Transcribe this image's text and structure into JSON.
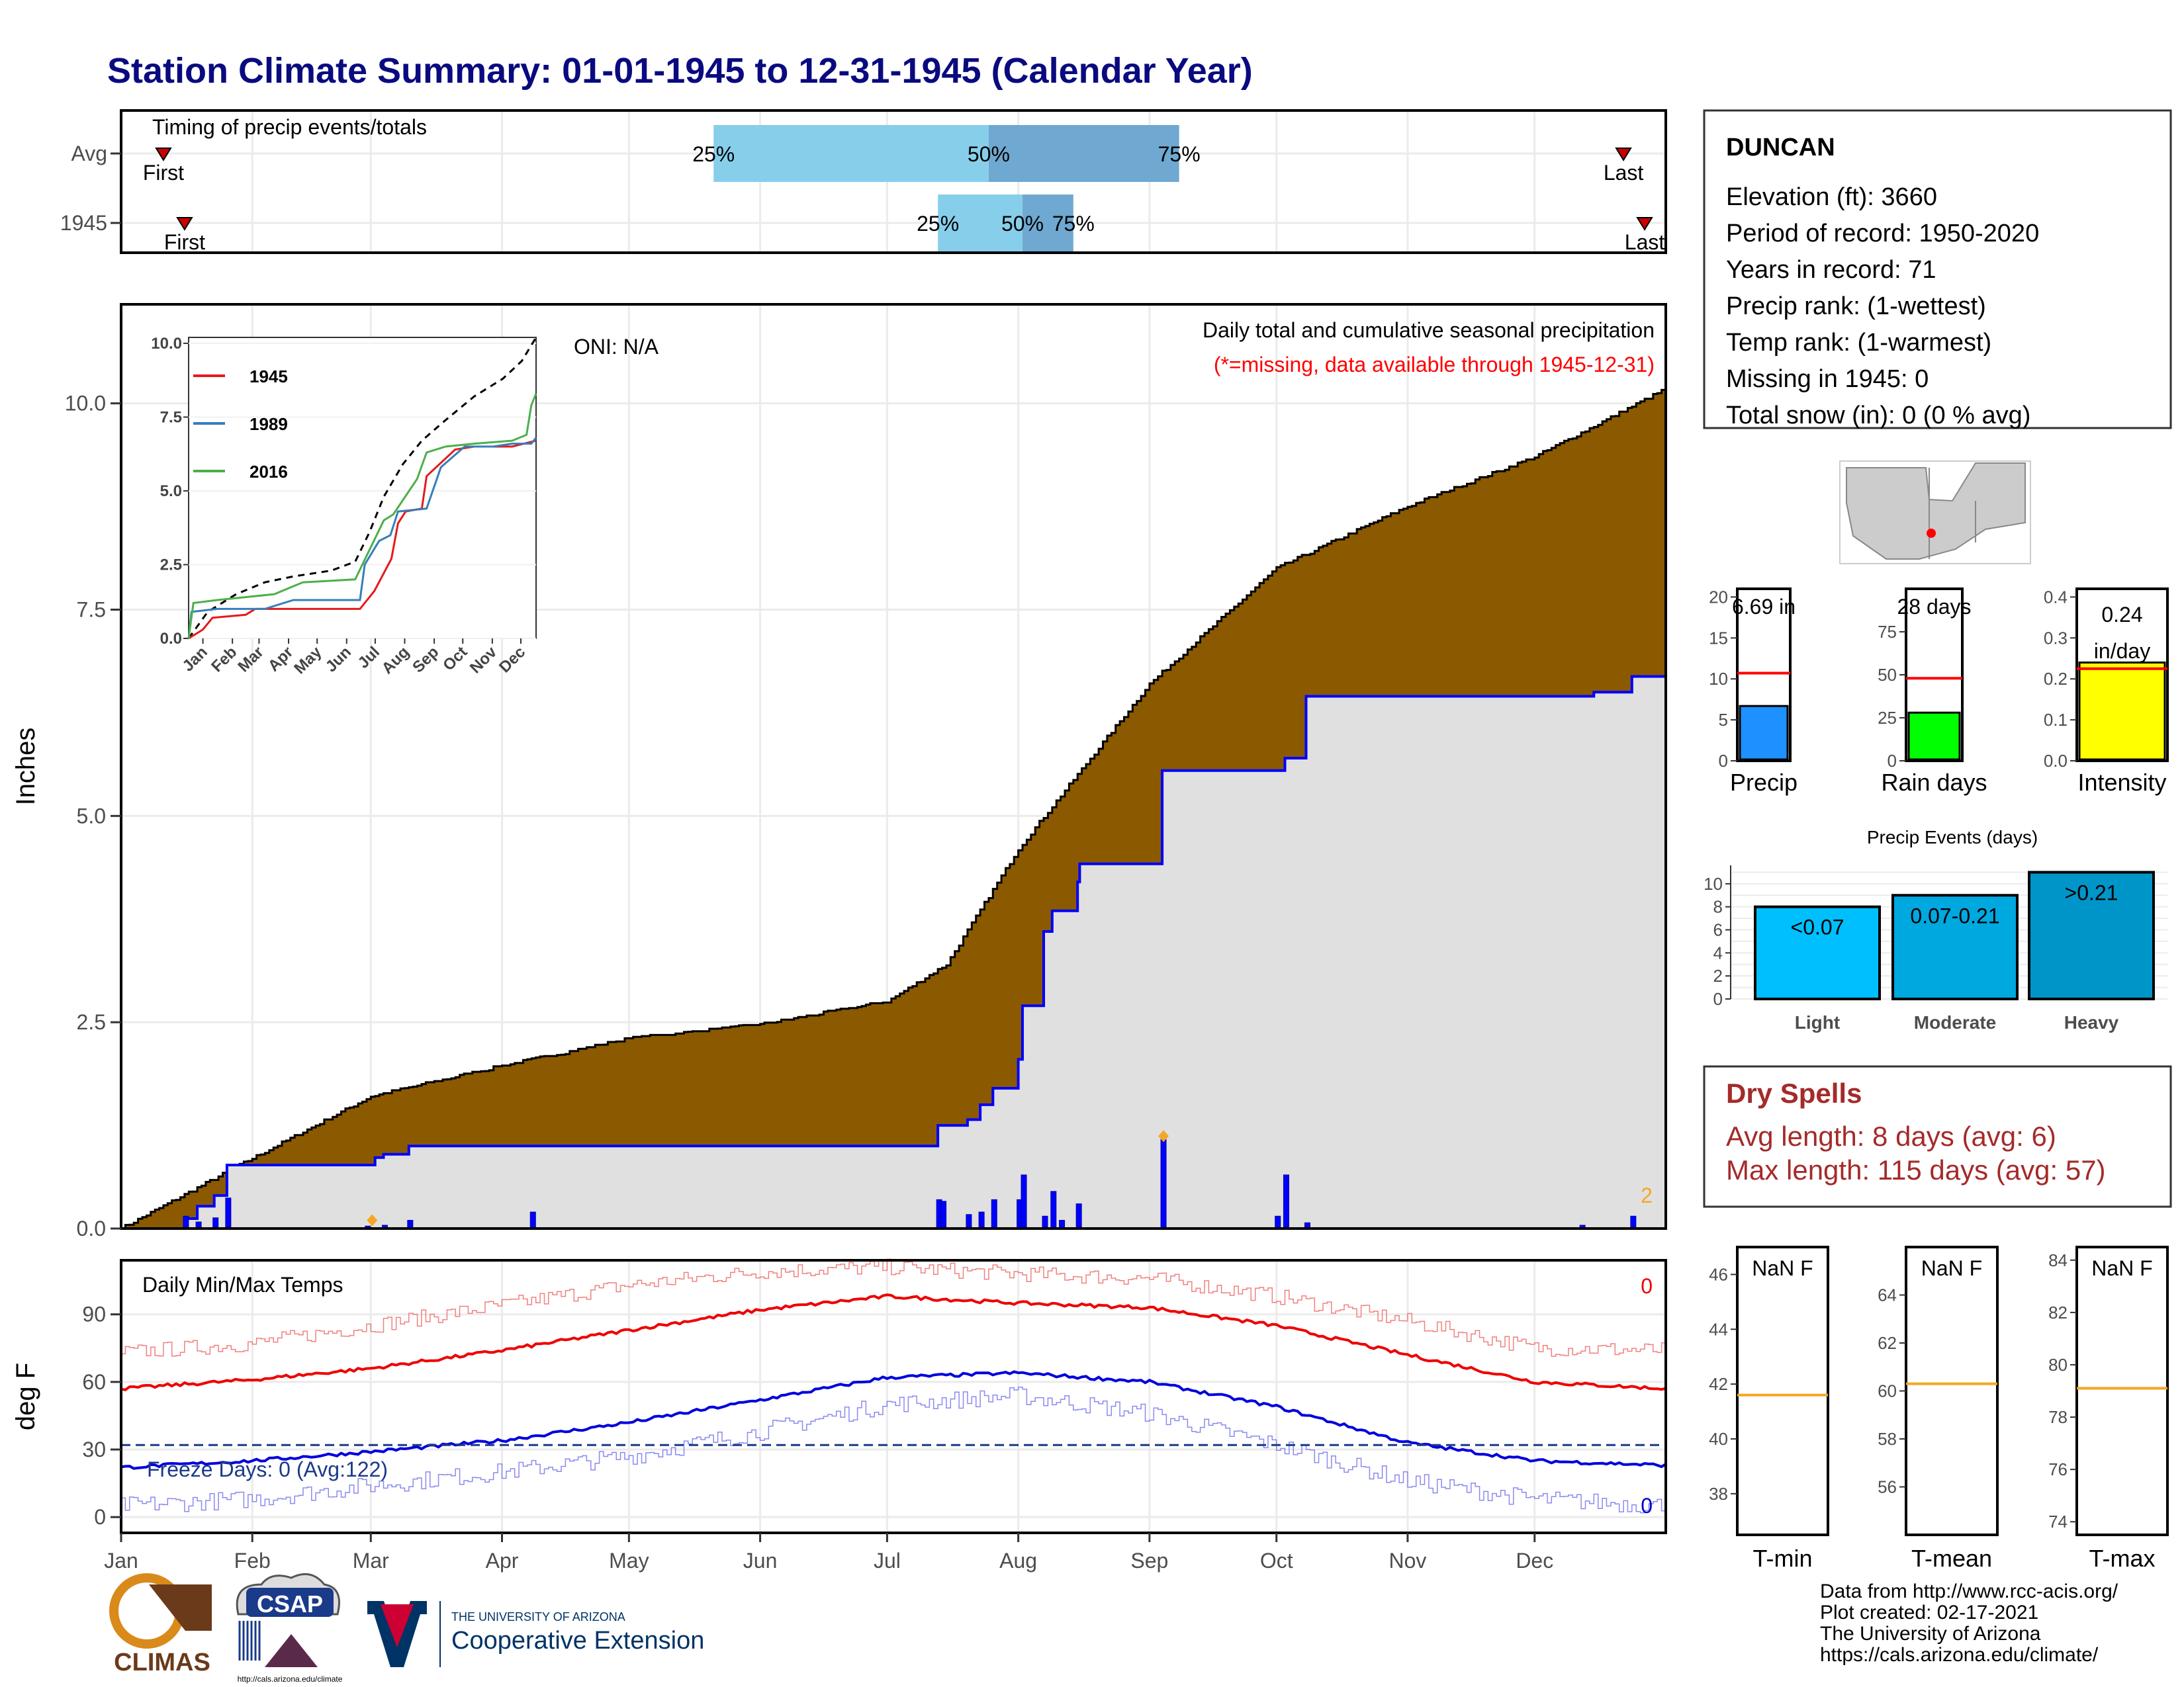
{
  "title": "Station Climate Summary: 01-01-1945 to 12-31-1945 (Calendar Year)",
  "months": [
    "Jan",
    "Feb",
    "Mar",
    "Apr",
    "May",
    "Jun",
    "Jul",
    "Aug",
    "Sep",
    "Oct",
    "Nov",
    "Dec"
  ],
  "timing": {
    "label": "Timing of precip events/totals",
    "rows": [
      "Avg",
      "1945"
    ],
    "first_label": "First",
    "last_label": "Last",
    "avg": {
      "first_day": 10,
      "p25_day": 140,
      "p50_day": 205,
      "p75_day": 250,
      "last_day": 355
    },
    "year": {
      "first_day": 15,
      "p25_day": 193,
      "p50_day": 213,
      "p75_day": 225,
      "last_day": 360
    },
    "pct_labels": [
      "25%",
      "50%",
      "75%"
    ],
    "colors": {
      "light": "#87ceeb",
      "dark": "#6fa8d0",
      "marker": "#cc0000"
    }
  },
  "station": {
    "name": "DUNCAN",
    "lines": [
      "Elevation (ft): 3660",
      "Period of record: 1950-2020",
      "Years in record: 71",
      "Precip rank:  (1-wettest)",
      "Temp rank:  (1-warmest)",
      "Missing in 1945: 0",
      "Total snow (in): 0 (0 % avg)"
    ]
  },
  "precip_panel": {
    "ylabel": "Inches",
    "yticks": [
      0.0,
      2.5,
      5.0,
      7.5,
      10.0
    ],
    "ytick_labels": [
      "0.0",
      "2.5",
      "5.0",
      "7.5",
      "10.0"
    ],
    "oni": "ONI: N/A",
    "annot1": "Daily total and cumulative seasonal precipitation",
    "annot2": "(*=missing, data available through 1945-12-31)",
    "count_label": "2",
    "colors": {
      "avg_fill": "#8b5a00",
      "obs_fill": "#e0e0e0",
      "obs_line": "#0000ff",
      "bar": "#0000ff",
      "missing": "#f5a623",
      "annot2": "#ff0000"
    }
  },
  "inset": {
    "yticks": [
      "0.0",
      "2.5",
      "5.0",
      "7.5",
      "10.0"
    ],
    "legend": [
      "1945",
      "1989",
      "2016"
    ],
    "colors": {
      "1945": "#e41a1c",
      "1989": "#377eb8",
      "2016": "#4daf4a",
      "avg": "#000000"
    }
  },
  "gauges": [
    {
      "name": "Precip",
      "label": "6.69 in",
      "value": 6.69,
      "avg": 10.7,
      "ymax": 21,
      "ticks": [
        "0",
        "5",
        "10",
        "15",
        "20"
      ],
      "tickvals": [
        0,
        5,
        10,
        15,
        20
      ],
      "color": "#1e90ff"
    },
    {
      "name": "Rain days",
      "label": "28 days",
      "value": 28,
      "avg": 48,
      "ymax": 100,
      "ticks": [
        "0",
        "25",
        "50",
        "75"
      ],
      "tickvals": [
        0,
        25,
        50,
        75
      ],
      "color": "#00ff00"
    },
    {
      "name": "Intensity",
      "label": "0.24 in/day",
      "label_lines": [
        "0.24",
        "in/day"
      ],
      "value": 0.24,
      "avg": 0.225,
      "ymax": 0.42,
      "ticks": [
        "0.0",
        "0.1",
        "0.2",
        "0.3",
        "0.4"
      ],
      "tickvals": [
        0,
        0.1,
        0.2,
        0.3,
        0.4
      ],
      "color": "#ffff00"
    }
  ],
  "events": {
    "title": "Precip Events (days)",
    "categories": [
      "Light",
      "Moderate",
      "Heavy"
    ],
    "values": [
      8,
      9,
      11
    ],
    "labels": [
      "<0.07",
      "0.07-0.21",
      ">0.21"
    ],
    "yticks": [
      "0",
      "2",
      "4",
      "6",
      "8",
      "10"
    ],
    "colors": [
      "#00bfff",
      "#00a8e0",
      "#0095c8"
    ]
  },
  "dry_spells": {
    "title": "Dry Spells",
    "avg_length": "Avg length: 8 days (avg: 6)",
    "max_length": "Max length: 115 days (avg: 57)"
  },
  "temp_panel": {
    "title": "Daily Min/Max Temps",
    "ylabel": "deg F",
    "yticks": [
      "0",
      "30",
      "60",
      "90"
    ],
    "freeze": "Freeze Days: 0 (Avg:122)",
    "count_hot": "0",
    "count_cold": "0"
  },
  "temp_gauges": [
    {
      "name": "T-min",
      "label": "NaN F",
      "avg": 41.6,
      "ymin": 36.5,
      "ymax": 47,
      "ticks": [
        "38",
        "40",
        "42",
        "44",
        "46"
      ],
      "tickvals": [
        38,
        40,
        42,
        44,
        46
      ]
    },
    {
      "name": "T-mean",
      "label": "NaN F",
      "avg": 60.3,
      "ymin": 54,
      "ymax": 66,
      "ticks": [
        "56",
        "58",
        "60",
        "62",
        "64"
      ],
      "tickvals": [
        56,
        58,
        60,
        62,
        64
      ]
    },
    {
      "name": "T-max",
      "label": "NaN F",
      "avg": 79.1,
      "ymin": 73.5,
      "ymax": 84.5,
      "ticks": [
        "74",
        "76",
        "78",
        "80",
        "82",
        "84"
      ],
      "tickvals": [
        74,
        76,
        78,
        80,
        82,
        84
      ]
    }
  ],
  "footer": {
    "lines": [
      "Data from http://www.rcc-acis.org/",
      "Plot created: 02-17-2021",
      "The University of Arizona",
      "https://cals.arizona.edu/climate/"
    ]
  },
  "logos": {
    "climas": "CLIMAS",
    "csap": "CSAP",
    "csap_url": "http://cals.arizona.edu/climate",
    "ua_small": "THE UNIVERSITY OF ARIZONA",
    "ua_big": "Cooperative Extension"
  },
  "chart_data": [
    {
      "type": "area",
      "title": "Daily total and cumulative seasonal precipitation",
      "ylabel": "Inches",
      "ylim": [
        0,
        11.2
      ],
      "x": [
        "Jan 1",
        "Feb 1",
        "Mar 1",
        "Apr 1",
        "May 1",
        "Jun 1",
        "Jul 1",
        "Jul 15",
        "Aug 1",
        "Sep 1",
        "Oct 1",
        "Nov 1",
        "Dec 1",
        "Dec 31"
      ],
      "series": [
        {
          "name": "avg",
          "values": [
            0.0,
            0.85,
            1.6,
            1.97,
            2.3,
            2.47,
            2.75,
            3.2,
            4.6,
            6.6,
            8.0,
            8.75,
            9.35,
            10.15
          ]
        },
        {
          "name": "1945",
          "values": [
            0.0,
            0.77,
            0.77,
            1.0,
            1.0,
            1.0,
            1.0,
            1.25,
            2.65,
            4.42,
            5.55,
            6.45,
            6.45,
            6.69
          ]
        }
      ]
    },
    {
      "type": "line",
      "title": "Daily Min/Max Temps",
      "ylabel": "deg F",
      "ylim": [
        -5,
        115
      ],
      "x": [
        "Jan",
        "Feb",
        "Mar",
        "Apr",
        "May",
        "Jun",
        "Jul",
        "Aug",
        "Sep",
        "Oct",
        "Nov",
        "Dec",
        "Dec 31"
      ],
      "series": [
        {
          "name": "avg max",
          "values": [
            57,
            61,
            66,
            74,
            83,
            92,
            98,
            95,
            93,
            85,
            72,
            60,
            57
          ]
        },
        {
          "name": "avg min",
          "values": [
            22,
            25,
            29,
            34,
            42,
            52,
            62,
            64,
            60,
            49,
            33,
            25,
            23
          ]
        },
        {
          "name": "record max",
          "values": [
            73,
            77,
            85,
            94,
            103,
            109,
            111,
            108,
            106,
            98,
            87,
            75,
            74
          ]
        },
        {
          "name": "record min",
          "values": [
            5,
            8,
            14,
            20,
            27,
            38,
            50,
            54,
            46,
            32,
            16,
            8,
            5
          ]
        }
      ]
    }
  ]
}
